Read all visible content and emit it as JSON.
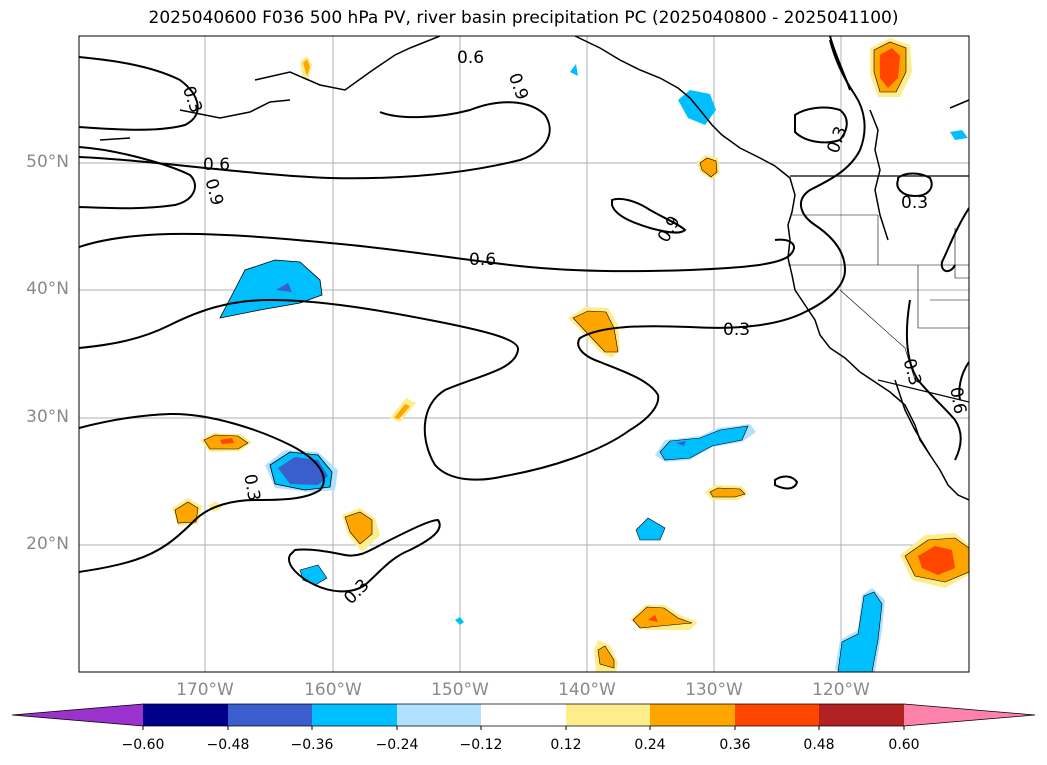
{
  "title": "2025040600 F036 500 hPa PV, river basin precipitation PC (2025040800 - 2025041100)",
  "map": {
    "lat_labels": [
      "50°N",
      "40°N",
      "30°N",
      "20°N"
    ],
    "lon_labels": [
      "170°W",
      "160°W",
      "150°W",
      "140°W",
      "130°W",
      "120°W"
    ],
    "contour_labels": {
      "c1": "0.3",
      "c2": "0.6",
      "c3": "0.9",
      "c4": "0.6",
      "c5": "0.9",
      "c6": "0.6",
      "c7": "0.9",
      "c8": "0.3",
      "c9": "0.3",
      "c10": "0.3",
      "c11": "0.3",
      "c12": "0.3",
      "c13": "0.3",
      "c14": "0.6"
    }
  },
  "colorbar": {
    "ticks": [
      "−0.60",
      "−0.48",
      "−0.36",
      "−0.24",
      "−0.12",
      "0.12",
      "0.24",
      "0.36",
      "0.48",
      "0.60"
    ],
    "colors": [
      "#9a32cd",
      "#00008b",
      "#3a5fcd",
      "#00bfff",
      "#b0e2ff",
      "#ffffff",
      "#ffec8b",
      "#ffa500",
      "#ff4500",
      "#b22222",
      "#ff82ab"
    ]
  }
}
